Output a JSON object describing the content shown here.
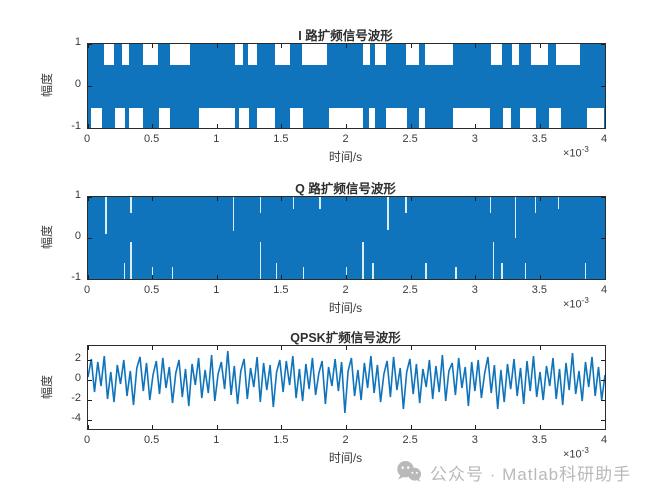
{
  "figure": {
    "background": "#ffffff",
    "line_color": "#0f74bc",
    "axis_color": "#2b2b2b",
    "text_color": "#3a3a3a"
  },
  "watermark": {
    "icon": "wechat-icon",
    "text": "公众号 · Matlab科研助手",
    "color": "#b9b9b9"
  },
  "chart_data": [
    {
      "type": "area",
      "render": "band-notch",
      "title": "I 路扩频信号波形",
      "xlabel": "时间/s",
      "ylabel": "幅度",
      "x_multiplier_base": "×10",
      "x_multiplier_exp": "-3",
      "xlim": [
        0,
        4
      ],
      "xticks": [
        0,
        0.5,
        1,
        1.5,
        2,
        2.5,
        3,
        3.5,
        4
      ],
      "ylim": [
        -1,
        1
      ],
      "yticks": [
        1,
        0,
        -1
      ],
      "note": "dense ±1 chip-rate square wave filling the axes; white notches mark intervals held at one polarity (x as fraction of 0–4 ms span)",
      "notch_depth_top": 0.25,
      "notch_depth_bottom": 0.24,
      "top_notches": [
        [
          0.031,
          0.05
        ],
        [
          0.066,
          0.079
        ],
        [
          0.106,
          0.135
        ],
        [
          0.159,
          0.197
        ],
        [
          0.284,
          0.3
        ],
        [
          0.309,
          0.327
        ],
        [
          0.362,
          0.391
        ],
        [
          0.414,
          0.462
        ],
        [
          0.532,
          0.545
        ],
        [
          0.555,
          0.576
        ],
        [
          0.615,
          0.64
        ],
        [
          0.652,
          0.706
        ],
        [
          0.78,
          0.8
        ],
        [
          0.82,
          0.834
        ],
        [
          0.857,
          0.89
        ],
        [
          0.905,
          0.952
        ]
      ],
      "bottom_notches": [
        [
          0.006,
          0.027
        ],
        [
          0.052,
          0.072
        ],
        [
          0.079,
          0.106
        ],
        [
          0.137,
          0.159
        ],
        [
          0.215,
          0.284
        ],
        [
          0.292,
          0.311
        ],
        [
          0.327,
          0.362
        ],
        [
          0.391,
          0.416
        ],
        [
          0.466,
          0.532
        ],
        [
          0.543,
          0.555
        ],
        [
          0.576,
          0.617
        ],
        [
          0.64,
          0.652
        ],
        [
          0.706,
          0.778
        ],
        [
          0.802,
          0.818
        ],
        [
          0.836,
          0.867
        ],
        [
          0.892,
          0.915
        ],
        [
          0.965,
          0.999
        ]
      ]
    },
    {
      "type": "area",
      "render": "band-slit",
      "title": "Q 路扩频信号波形",
      "xlabel": "时间/s",
      "ylabel": "幅度",
      "x_multiplier_base": "×10",
      "x_multiplier_exp": "-3",
      "xlim": [
        0,
        4
      ],
      "xticks": [
        0,
        0.5,
        1,
        1.5,
        2,
        2.5,
        3,
        3.5,
        4
      ],
      "ylim": [
        -1,
        1
      ],
      "yticks": [
        1,
        0,
        -1
      ],
      "note": "dense ±1 chip-rate square wave, nearly solid; thin light slits [x fraction, depth fraction] from top/bottom edge",
      "slit_color": "#d9edf9",
      "top_slits": [
        [
          0.035,
          0.45
        ],
        [
          0.083,
          0.2
        ],
        [
          0.282,
          0.42
        ],
        [
          0.333,
          0.2
        ],
        [
          0.397,
          0.15
        ],
        [
          0.449,
          0.15
        ],
        [
          0.58,
          0.4
        ],
        [
          0.615,
          0.2
        ],
        [
          0.779,
          0.2
        ],
        [
          0.827,
          0.5
        ],
        [
          0.865,
          0.2
        ],
        [
          0.91,
          0.15
        ]
      ],
      "bottom_slits": [
        [
          0.07,
          0.2
        ],
        [
          0.083,
          0.45
        ],
        [
          0.125,
          0.15
        ],
        [
          0.163,
          0.15
        ],
        [
          0.333,
          0.45
        ],
        [
          0.365,
          0.2
        ],
        [
          0.417,
          0.15
        ],
        [
          0.5,
          0.15
        ],
        [
          0.532,
          0.45
        ],
        [
          0.551,
          0.2
        ],
        [
          0.654,
          0.2
        ],
        [
          0.712,
          0.15
        ],
        [
          0.785,
          0.45
        ],
        [
          0.801,
          0.2
        ],
        [
          0.846,
          0.2
        ],
        [
          0.962,
          0.2
        ]
      ]
    },
    {
      "type": "line",
      "render": "line",
      "title": "QPSK扩频信号波形",
      "xlabel": "时间/s",
      "ylabel": "幅度",
      "x_multiplier_base": "×10",
      "x_multiplier_exp": "-3",
      "xlim": [
        0,
        4
      ],
      "xticks": [
        0,
        0.5,
        1,
        1.5,
        2,
        2.5,
        3,
        3.5,
        4
      ],
      "ylim": [
        -4.9,
        3.4
      ],
      "yticks": [
        2,
        0,
        -2,
        -4
      ],
      "note": "noise-like QPSK spread waveform, amplitude mostly within ±2.6, extremes ≈ +2.9 and −3.3; samples evenly spaced over 0–4 ms",
      "samples": [
        0.3,
        2.1,
        -1.2,
        1.8,
        -0.6,
        2.4,
        -1.9,
        0.8,
        -2.2,
        1.5,
        -0.4,
        2.0,
        -1.6,
        0.9,
        -2.5,
        1.2,
        2.3,
        -1.1,
        1.7,
        -2.0,
        0.5,
        1.9,
        -1.4,
        2.2,
        -0.8,
        1.3,
        -2.3,
        0.7,
        2.0,
        -1.7,
        1.1,
        -2.6,
        1.6,
        -0.5,
        2.2,
        -1.8,
        1.0,
        -1.3,
        2.5,
        -2.1,
        0.6,
        1.8,
        -0.9,
        2.9,
        -1.5,
        1.4,
        -2.4,
        0.9,
        2.1,
        -1.9,
        1.2,
        -0.7,
        2.3,
        -2.2,
        1.7,
        -1.0,
        1.5,
        -2.7,
        0.8,
        2.0,
        -1.2,
        1.9,
        -0.5,
        2.4,
        -1.8,
        1.1,
        -2.1,
        1.6,
        -0.9,
        2.2,
        -1.5,
        0.7,
        1.9,
        -2.4,
        1.3,
        -0.6,
        2.1,
        -1.1,
        1.8,
        -3.3,
        0.9,
        2.2,
        -1.6,
        1.0,
        -2.0,
        1.7,
        -0.8,
        2.4,
        -1.3,
        1.5,
        -2.2,
        0.6,
        1.9,
        -1.7,
        2.3,
        -1.0,
        1.2,
        -2.9,
        0.8,
        2.1,
        -1.4,
        1.6,
        -2.3,
        1.1,
        -0.7,
        2.0,
        -1.9,
        1.4,
        -1.2,
        2.5,
        -2.1,
        0.9,
        1.7,
        -1.5,
        2.2,
        -0.8,
        1.3,
        -2.6,
        1.8,
        -1.1,
        2.0,
        -1.8,
        0.7,
        2.3,
        -1.3,
        1.5,
        -2.9,
        1.0,
        -2.2,
        1.6,
        -0.9,
        2.1,
        -1.6,
        1.2,
        -2.4,
        1.9,
        -1.1,
        2.4,
        -1.7,
        0.8,
        -2.0,
        1.4,
        -0.6,
        2.2,
        -1.9,
        1.1,
        -2.5,
        1.7,
        -1.0,
        2.7,
        -1.4,
        0.9,
        -2.1,
        1.8,
        -0.7,
        2.3,
        -1.6,
        1.3,
        -2.0,
        0.5
      ]
    }
  ]
}
